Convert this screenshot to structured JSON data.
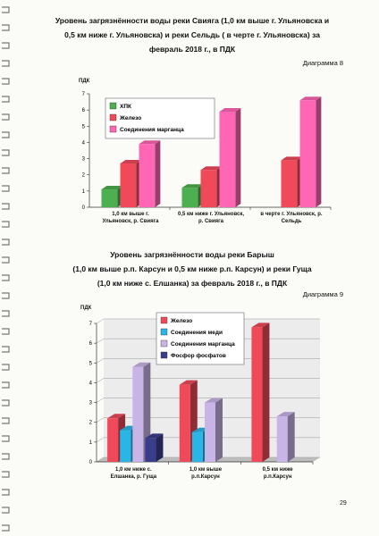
{
  "chart_data": [
    {
      "type": "bar",
      "title": [
        "Уровень загрязнённости воды реки Свияга (1,0 км выше г. Ульяновска и",
        "0,5 км ниже г. Ульяновска) и реки Сельдь ( в черте г. Ульяновска) за",
        "февраль 2018 г., в ПДК"
      ],
      "diagram_label": "Диаграмма 8",
      "ylabel": "ПДК",
      "ylim": [
        0,
        7
      ],
      "yticks": [
        0,
        1,
        2,
        3,
        4,
        5,
        6,
        7
      ],
      "grid": false,
      "categories": [
        "1,0 км выше г. Ульяновск, р. Свияга",
        "0,5 км ниже г. Ульяновск, р. Свияга",
        "в черте г. Ульяновск, р. Сельдь"
      ],
      "series": [
        {
          "name": "ХПК",
          "color": "#4caf50",
          "values": [
            1.1,
            1.2,
            null
          ]
        },
        {
          "name": "Железо",
          "color": "#f04a5a",
          "values": [
            2.7,
            2.3,
            2.9
          ]
        },
        {
          "name": "Соединения марганца",
          "color": "#ff66b3",
          "values": [
            3.9,
            5.9,
            6.6
          ]
        }
      ]
    },
    {
      "type": "bar",
      "title": [
        "Уровень загрязнённости воды реки Барыш",
        "(1,0 км выше р.п. Карсун и 0,5 км ниже р.п. Карсун) и реки Гуща",
        "(1,0 км ниже с. Елшанка) за февраль 2018 г., в ПДК"
      ],
      "diagram_label": "Диаграмма 9",
      "ylabel": "ПДК",
      "ylim": [
        0,
        7
      ],
      "yticks": [
        0,
        1,
        2,
        3,
        4,
        5,
        6,
        7
      ],
      "grid": true,
      "categories": [
        "1,0 км ниже с. Елшанка, р. Гуща",
        "1,0 км выше р.п.Карсун",
        "0,5 км ниже р.п.Карсун"
      ],
      "series": [
        {
          "name": "Железо",
          "color": "#f04a5a",
          "values": [
            2.2,
            3.9,
            6.8
          ]
        },
        {
          "name": "Соединения меди",
          "color": "#29b6e6",
          "values": [
            1.6,
            1.5,
            null
          ]
        },
        {
          "name": "Соединения марганца",
          "color": "#c8b4e6",
          "values": [
            4.8,
            3.0,
            2.3
          ]
        },
        {
          "name": "Фосфор фосфатов",
          "color": "#3a3d8c",
          "values": [
            1.2,
            null,
            null
          ]
        }
      ]
    }
  ],
  "page_number": "29"
}
